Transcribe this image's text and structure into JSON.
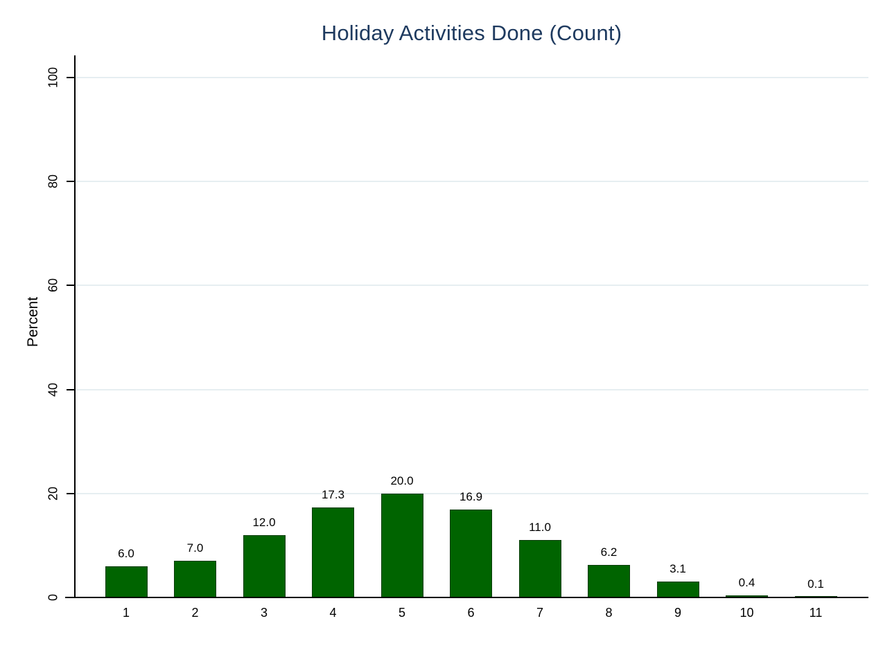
{
  "chart_data": {
    "type": "bar",
    "title": "Holiday Activities Done (Count)",
    "xlabel": "",
    "ylabel": "Percent",
    "categories": [
      "1",
      "2",
      "3",
      "4",
      "5",
      "6",
      "7",
      "8",
      "9",
      "10",
      "11"
    ],
    "values": [
      6.0,
      7.0,
      12.0,
      17.3,
      20.0,
      16.9,
      11.0,
      6.2,
      3.1,
      0.4,
      0.1
    ],
    "bar_labels": [
      "6.0",
      "7.0",
      "12.0",
      "17.3",
      "20.0",
      "16.9",
      "11.0",
      "6.2",
      "3.1",
      "0.4",
      "0.1"
    ],
    "ylim": [
      0,
      100
    ],
    "yticks": [
      0,
      20,
      40,
      60,
      80,
      100
    ],
    "grid": true,
    "legend_position": "none",
    "colors": {
      "bar_fill": "#006400",
      "bar_border": "#0b3d0b",
      "grid_line": "#e6eef1",
      "axis_line": "#000000",
      "title_text": "#1e3a5f",
      "tick_text": "#000000"
    }
  }
}
